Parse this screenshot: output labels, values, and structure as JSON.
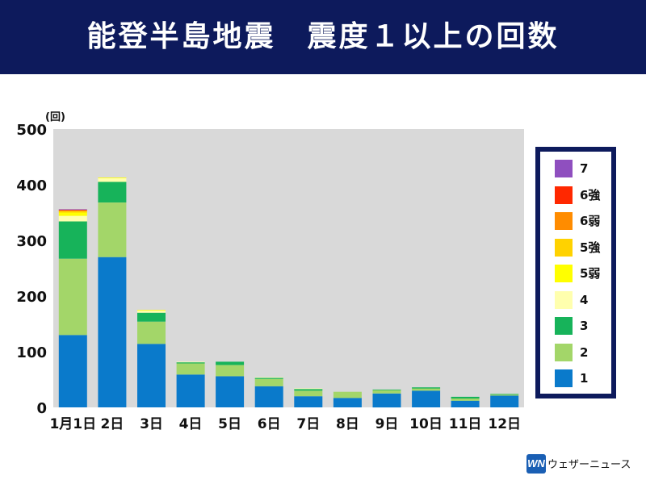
{
  "title": "能登半島地震　震度１以上の回数",
  "unit_label": "(回)",
  "colors": {
    "title_bar": "#0d1a5c",
    "plot_bg": "#d9d9d9"
  },
  "chart_data": {
    "type": "bar",
    "stacked": true,
    "categories": [
      "1月1日",
      "2日",
      "3日",
      "4日",
      "5日",
      "6日",
      "7日",
      "8日",
      "9日",
      "10日",
      "11日",
      "12日"
    ],
    "ylim": [
      0,
      500
    ],
    "yticks": [
      0,
      100,
      200,
      300,
      400,
      500
    ],
    "grid": false,
    "legend_placement": "right",
    "series": [
      {
        "name": "1",
        "color": "#0a7acb",
        "values": [
          130,
          270,
          114,
          59,
          56,
          38,
          20,
          17,
          25,
          30,
          12,
          21
        ]
      },
      {
        "name": "2",
        "color": "#a3d669",
        "values": [
          137,
          98,
          40,
          20,
          20,
          13,
          10,
          11,
          6,
          4,
          4,
          2
        ]
      },
      {
        "name": "3",
        "color": "#17b35a",
        "values": [
          67,
          37,
          16,
          2,
          6,
          2,
          3,
          0,
          1,
          2,
          3,
          1
        ]
      },
      {
        "name": "4",
        "color": "#ffffae",
        "values": [
          10,
          7,
          4,
          1,
          0,
          1,
          1,
          0,
          0,
          0,
          0,
          0
        ]
      },
      {
        "name": "5弱",
        "color": "#ffff00",
        "values": [
          6,
          1,
          1,
          0,
          0,
          0,
          0,
          0,
          0,
          0,
          0,
          0
        ]
      },
      {
        "name": "5強",
        "color": "#ffd200",
        "values": [
          3,
          0,
          0,
          0,
          0,
          0,
          0,
          0,
          0,
          0,
          0,
          0
        ]
      },
      {
        "name": "6弱",
        "color": "#ff8c00",
        "values": [
          1,
          0,
          0,
          0,
          0,
          0,
          0,
          0,
          0,
          0,
          0,
          0
        ]
      },
      {
        "name": "6強",
        "color": "#ff2800",
        "values": [
          1,
          0,
          0,
          0,
          0,
          0,
          0,
          0,
          0,
          0,
          0,
          0
        ]
      },
      {
        "name": "7",
        "color": "#8f4fbf",
        "values": [
          1,
          0,
          0,
          0,
          0,
          0,
          0,
          0,
          0,
          0,
          0,
          0
        ]
      }
    ]
  },
  "brand": {
    "logo_text": "WN",
    "name": "ウェザーニュース"
  }
}
